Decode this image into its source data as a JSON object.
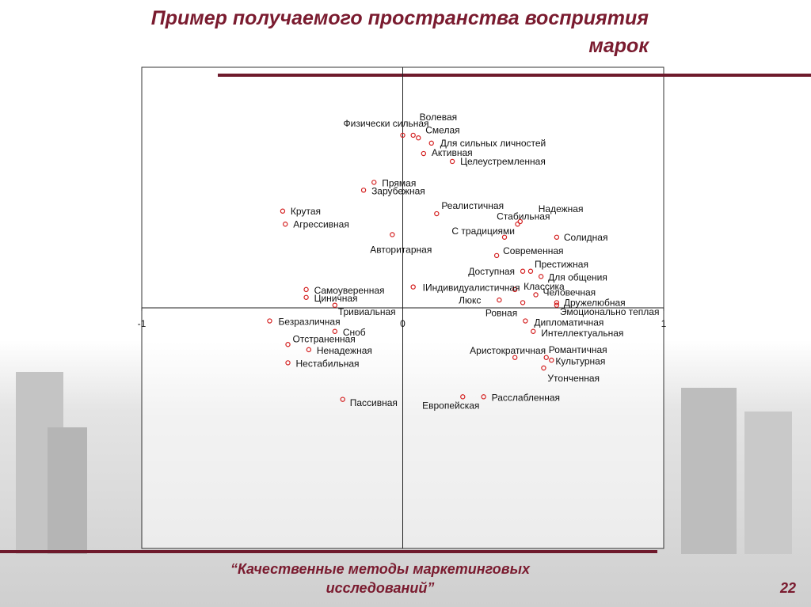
{
  "chart_data": {
    "type": "scatter",
    "title": "Пример получаемого пространства восприятия марок",
    "labels": [
      "Физически сильная",
      "Волевая",
      "Смелая",
      "Для сильных личностей",
      "Активная",
      "Целеустремленная",
      "Прямая",
      "Зарубежная",
      "Крутая",
      "Агрессивная",
      "Реалистичная",
      "Стабильная",
      "Надежная",
      "Солидная",
      "С традициями",
      "Авторитарная",
      "Современная",
      "Престижная",
      "Доступная",
      "Для общения",
      "Классика",
      "IИндивидуалистичная",
      "Самоуверенная",
      "Циничная",
      "Человечная",
      "Дружелюбная",
      "Люкс",
      "Ровная",
      "Эмоционально теплая",
      "Тривиальная",
      "Безразличная",
      "Дипломатичная",
      "Сноб",
      "Интеллектуальная",
      "Отстраненная",
      "Ненадежная",
      "Аристократичная",
      "Романтичная",
      "Культурная",
      "Нестабильная",
      "Утонченная",
      "Пассивная",
      "Европейская",
      "Расслабленная"
    ],
    "x": [
      0.0,
      0.04,
      0.06,
      0.11,
      0.08,
      0.19,
      -0.11,
      -0.15,
      -0.46,
      -0.45,
      0.13,
      0.44,
      0.45,
      0.59,
      0.39,
      -0.04,
      0.36,
      0.49,
      0.46,
      0.53,
      0.43,
      0.04,
      -0.37,
      -0.37,
      0.51,
      0.59,
      0.37,
      0.46,
      0.59,
      -0.26,
      -0.51,
      0.47,
      -0.26,
      0.5,
      -0.44,
      -0.36,
      0.43,
      0.55,
      0.57,
      -0.44,
      0.54,
      -0.23,
      0.23,
      0.31
    ],
    "y": [
      0.66,
      0.66,
      0.65,
      0.63,
      0.59,
      0.56,
      0.48,
      0.45,
      0.37,
      0.32,
      0.36,
      0.32,
      0.33,
      0.27,
      0.27,
      0.28,
      0.2,
      0.14,
      0.14,
      0.12,
      0.07,
      0.08,
      0.07,
      0.04,
      0.05,
      0.02,
      0.03,
      0.02,
      0.01,
      0.01,
      -0.05,
      -0.05,
      -0.09,
      -0.09,
      -0.14,
      -0.16,
      -0.19,
      -0.19,
      -0.2,
      -0.21,
      -0.23,
      -0.35,
      -0.34,
      -0.34
    ],
    "color": "#d42020",
    "xlim": [
      -1,
      1
    ],
    "xticks": [
      -1,
      0,
      1
    ],
    "ylim": [
      -0.92,
      0.92
    ]
  },
  "footer": "“Качественные методы маркетинговых исследований”",
  "page_number": "22"
}
